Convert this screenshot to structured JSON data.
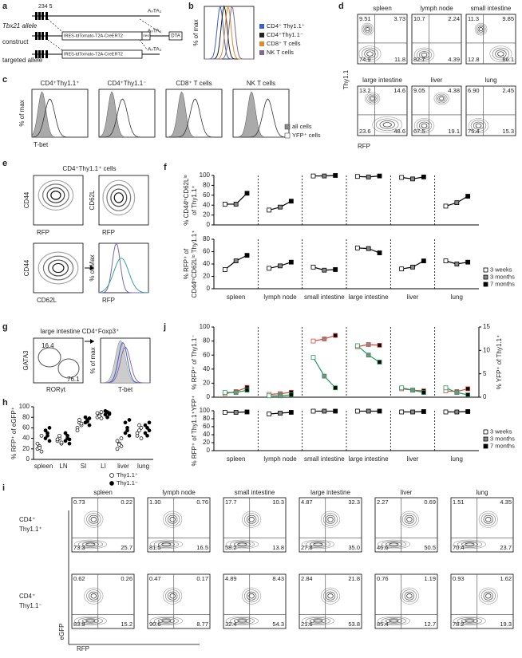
{
  "figure": {
    "labels": {
      "f": "f",
      "h": "h",
      "j": "j"
    },
    "a": {
      "label": "a",
      "exons": "234 5",
      "alleles": [
        "Tbx21 allele",
        "construct",
        "targeted allele"
      ],
      "cassette": [
        "IRES-tdTomato-T2A-CreERT2",
        "IRES-tdTomato-T2A-CreERT2"
      ],
      "neo": "neo",
      "dta": "DTA",
      "polyA": [
        "AₙTA₃",
        "AₙTA₃",
        "AₙTA₃"
      ]
    },
    "b": {
      "label": "b",
      "ylabel": "% of max",
      "legend": [
        {
          "name": "CD4⁺ Thy1.1⁺",
          "color": "#3b5fcf"
        },
        {
          "name": "CD4⁺Thy1.1⁻",
          "color": "#222222"
        },
        {
          "name": "CD8⁺ T cells",
          "color": "#e0892c"
        },
        {
          "name": "NK T cells",
          "color": "#7d6b8e"
        }
      ]
    },
    "c": {
      "label": "c",
      "titles": [
        "CD4⁺Thy1.1⁺",
        "CD4⁺Thy1.1⁻",
        "CD8⁺ T cells",
        "NK T cells"
      ],
      "ylabel": "% of max",
      "xlabel": "T-bet",
      "legend": [
        "all cells",
        "YFP⁺ cells"
      ]
    },
    "d": {
      "label": "d",
      "ylabel": "Thy1.1",
      "xlabel": "RFP",
      "plots": [
        {
          "title": "spleen",
          "q": [
            "9.51",
            "3.73",
            "74.9",
            "11.8"
          ]
        },
        {
          "title": "lymph node",
          "q": [
            "10.7",
            "2.24",
            "82.7",
            "4.39"
          ]
        },
        {
          "title": "small intestine",
          "q": [
            "11.3",
            "9.85",
            "12.8",
            "66.1"
          ]
        },
        {
          "title": "large intestine",
          "q": [
            "13.2",
            "14.6",
            "23.6",
            "48.6"
          ]
        },
        {
          "title": "liver",
          "q": [
            "9.05",
            "4.38",
            "67.5",
            "19.1"
          ]
        },
        {
          "title": "lung",
          "q": [
            "6.90",
            "2.45",
            "75.4",
            "15.3"
          ]
        }
      ]
    },
    "e": {
      "label": "e",
      "title": "CD4⁺Thy1.1⁺ cells",
      "plots": [
        {
          "y": "CD44",
          "x": "RFP"
        },
        {
          "y": "CD62L",
          "x": "RFP"
        },
        {
          "y": "CD44",
          "x": "CD62L"
        },
        {
          "y": "% of Max",
          "x": "RFP"
        }
      ]
    },
    "g": {
      "label": "g",
      "title": "large intestine CD4⁺Foxp3⁺",
      "ylabel": "GATA3",
      "xlabel": "RORγt",
      "gates": [
        "16.4",
        "76.1"
      ],
      "hist_ylabel": "% of max",
      "hist_xlabel": "T-bet"
    },
    "i": {
      "label": "i",
      "xlabel": "RFP",
      "ylabel": "eGFP",
      "columns": [
        "spleen",
        "lymph node",
        "small intestine",
        "large intestine",
        "liver",
        "lung"
      ],
      "rows": [
        {
          "title": [
            "CD4⁺",
            "Thy1.1⁺"
          ],
          "q": [
            [
              "0.73",
              "0.22",
              "73.3",
              "25.7"
            ],
            [
              "1.30",
              "0.76",
              "81.5",
              "16.5"
            ],
            [
              "17.7",
              "10.3",
              "58.2",
              "13.8"
            ],
            [
              "4.87",
              "32.3",
              "27.8",
              "35.0"
            ],
            [
              "2.27",
              "0.69",
              "46.6",
              "50.5"
            ],
            [
              "1.51",
              "4.35",
              "70.4",
              "23.7"
            ]
          ]
        },
        {
          "title": [
            "CD4⁺",
            "Thy1.1⁻"
          ],
          "q": [
            [
              "0.62",
              "0.26",
              "83.9",
              "15.2"
            ],
            [
              "0.47",
              "0.17",
              "90.6",
              "8.77"
            ],
            [
              "4.89",
              "8.43",
              "32.4",
              "54.3"
            ],
            [
              "2.84",
              "21.8",
              "21.6",
              "53.8"
            ],
            [
              "0.76",
              "1.19",
              "85.4",
              "12.7"
            ],
            [
              "0.93",
              "1.62",
              "78.2",
              "19.3"
            ]
          ]
        }
      ]
    }
  },
  "chart_data": [
    {
      "type": "line",
      "ylabel": [
        "% CD44ʰⁱCD62Lˡᵒ",
        "of Thy1.1⁺"
      ],
      "marker_fills": [
        "#ffffff",
        "#888888",
        "#000000"
      ],
      "series": [
        {
          "color": "#000000",
          "values": [
            [
              42,
              42,
              64
            ],
            [
              30,
              36,
              48
            ],
            [
              99,
              99,
              100
            ],
            [
              98,
              97,
              99
            ],
            [
              96,
              93,
              97
            ],
            [
              38,
              45,
              58
            ]
          ]
        }
      ],
      "ylim": [
        0,
        100
      ],
      "yticks": [
        0,
        20,
        40,
        60,
        80,
        100
      ]
    },
    {
      "type": "line",
      "ylabel": [
        "% RFP⁺ of",
        "CD44ʰⁱCD62Lˡᵒ Thy1.1⁺"
      ],
      "marker_fills": [
        "#ffffff",
        "#888888",
        "#000000"
      ],
      "categories": [
        "spleen",
        "lymph node",
        "small intestine",
        "large intestine",
        "liver",
        "lung"
      ],
      "legend": [
        "3 weeks",
        "3 months",
        "7 months"
      ],
      "series": [
        {
          "color": "#000000",
          "values": [
            [
              31,
              45,
              54
            ],
            [
              33,
              37,
              43
            ],
            [
              35,
              30,
              31
            ],
            [
              66,
              65,
              58
            ],
            [
              32,
              35,
              45
            ],
            [
              45,
              40,
              43
            ]
          ]
        }
      ],
      "ylim": [
        0,
        80
      ],
      "yticks": [
        0,
        20,
        40,
        60,
        80
      ]
    },
    {
      "type": "strip",
      "ylabel": "% RFP⁺ of eGFP⁺",
      "categories": [
        "spleen",
        "LN",
        "SI",
        "LI",
        "liver",
        "lung"
      ],
      "series": [
        {
          "name": "Thy1.1⁺",
          "color": "#ffffff",
          "values": [
            [
              20,
              25,
              15,
              30,
              22,
              45
            ],
            [
              35,
              40,
              30,
              38,
              45,
              32
            ],
            [
              60,
              70,
              65,
              55,
              75,
              68
            ],
            [
              80,
              85,
              78,
              88,
              82,
              90
            ],
            [
              20,
              30,
              25,
              35,
              28,
              40
            ],
            [
              45,
              55,
              60,
              50,
              65,
              40
            ]
          ]
        },
        {
          "name": "Thy1.1⁻",
          "color": "#000000",
          "values": [
            [
              40,
              50,
              35,
              55,
              45,
              60
            ],
            [
              35,
              45,
              30,
              50,
              40,
              38
            ],
            [
              70,
              75,
              65,
              80,
              72,
              78
            ],
            [
              85,
              90,
              88,
              92,
              80,
              86
            ],
            [
              50,
              60,
              45,
              70,
              55,
              75
            ],
            [
              50,
              60,
              55,
              65,
              45,
              70
            ]
          ]
        }
      ],
      "ylim": [
        0,
        100
      ],
      "yticks": [
        0,
        20,
        40,
        60,
        80,
        100
      ]
    },
    {
      "type": "line",
      "ylabel": [
        "% RFP⁺ of Thy1.1⁻"
      ],
      "y2label": "% YFP⁺ of Thy1.1⁺",
      "marker_fills": [
        "#ffffff",
        "#888888",
        "#000000"
      ],
      "series": [
        {
          "color": "#d9483b",
          "values": [
            [
              5,
              8,
              14
            ],
            [
              4,
              5,
              7
            ],
            [
              80,
              83,
              88
            ],
            [
              72,
              75,
              74
            ],
            [
              12,
              10,
              9
            ],
            [
              9,
              8,
              12
            ]
          ]
        },
        {
          "color": "#1f9a5c",
          "axis": "y2",
          "values": [
            [
              1,
              1,
              1.5
            ],
            [
              0.3,
              0.3,
              0.5
            ],
            [
              8.5,
              4.5,
              2
            ],
            [
              11,
              9,
              7.5
            ],
            [
              2,
              1.5,
              1
            ],
            [
              2,
              1,
              0.5
            ]
          ]
        }
      ],
      "ylim": [
        0,
        100
      ],
      "yticks": [
        0,
        20,
        40,
        60,
        80,
        100
      ],
      "y2lim": [
        0,
        15
      ],
      "y2ticks": [
        0,
        5,
        10,
        15
      ]
    },
    {
      "type": "line",
      "ylabel": [
        "% RFP⁺ of Thy1.1⁺YFP⁺"
      ],
      "marker_fills": [
        "#ffffff",
        "#888888",
        "#000000"
      ],
      "categories": [
        "spleen",
        "lymph node",
        "small intestine",
        "large intestine",
        "liver",
        "lung"
      ],
      "legend": [
        "3 weeks",
        "3 months",
        "7 months"
      ],
      "series": [
        {
          "color": "#000000",
          "values": [
            [
              96,
              96,
              97
            ],
            [
              92,
              94,
              96
            ],
            [
              99,
              99,
              99
            ],
            [
              99,
              99,
              99
            ],
            [
              97,
              97,
              98
            ],
            [
              97,
              97,
              98
            ]
          ]
        }
      ],
      "ylim": [
        0,
        100
      ],
      "yticks": [
        0,
        20,
        40,
        60,
        80,
        100
      ]
    }
  ]
}
